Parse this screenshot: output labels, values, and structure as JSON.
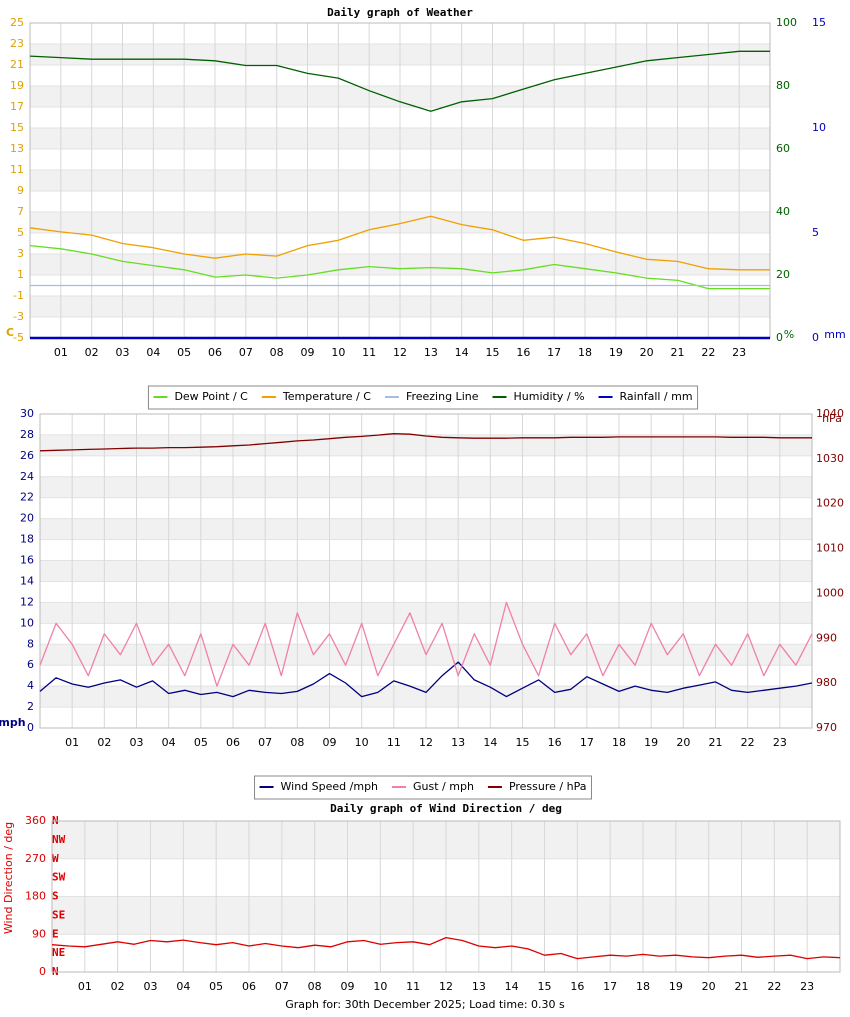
{
  "chart_data": [
    {
      "type": "line",
      "title": "Daily graph of Weather",
      "x": [
        0,
        1,
        2,
        3,
        4,
        5,
        6,
        7,
        8,
        9,
        10,
        11,
        12,
        13,
        14,
        15,
        16,
        17,
        18,
        19,
        20,
        21,
        22,
        23,
        24
      ],
      "xlim": [
        0,
        24
      ],
      "xticks": [
        {
          "value": 1,
          "label": "01"
        },
        {
          "value": 2,
          "label": "02"
        },
        {
          "value": 3,
          "label": "03"
        },
        {
          "value": 4,
          "label": "04"
        },
        {
          "value": 5,
          "label": "05"
        },
        {
          "value": 6,
          "label": "06"
        },
        {
          "value": 7,
          "label": "07"
        },
        {
          "value": 8,
          "label": "08"
        },
        {
          "value": 9,
          "label": "09"
        },
        {
          "value": 10,
          "label": "10"
        },
        {
          "value": 11,
          "label": "11"
        },
        {
          "value": 12,
          "label": "12"
        },
        {
          "value": 13,
          "label": "13"
        },
        {
          "value": 14,
          "label": "14"
        },
        {
          "value": 15,
          "label": "15"
        },
        {
          "value": 16,
          "label": "16"
        },
        {
          "value": 17,
          "label": "17"
        },
        {
          "value": 18,
          "label": "18"
        },
        {
          "value": 19,
          "label": "19"
        },
        {
          "value": 20,
          "label": "20"
        },
        {
          "value": 21,
          "label": "21"
        },
        {
          "value": 22,
          "label": "22"
        },
        {
          "value": 23,
          "label": "23"
        }
      ],
      "ylabel": "C",
      "ylim": [
        -5,
        25
      ],
      "yticks": [
        -5,
        -3,
        -1,
        1,
        3,
        5,
        7,
        9,
        11,
        13,
        15,
        17,
        19,
        21,
        23,
        25
      ],
      "ycolor": "#e0a000",
      "y2label": "%",
      "y2lim": [
        0,
        100
      ],
      "y2ticks": [
        0,
        20,
        40,
        60,
        80,
        100
      ],
      "y2color": "#006000",
      "y3label": "mm",
      "y3lim": [
        0,
        15
      ],
      "y3ticks": [
        0,
        5,
        10,
        15
      ],
      "y3color": "#0000c0",
      "grid": true,
      "series": [
        {
          "name": "Dew Point / C",
          "color": "#66dd22",
          "axis": "y",
          "values": [
            3.8,
            3.5,
            3.0,
            2.3,
            1.9,
            1.5,
            0.8,
            1.0,
            0.7,
            1.0,
            1.5,
            1.8,
            1.6,
            1.7,
            1.6,
            1.2,
            1.5,
            2.0,
            1.6,
            1.2,
            0.7,
            0.5,
            -0.3,
            -0.3,
            -0.3
          ]
        },
        {
          "name": "Temperature / C",
          "color": "#f0a000",
          "axis": "y",
          "values": [
            5.5,
            5.1,
            4.8,
            4.0,
            3.6,
            3.0,
            2.6,
            3.0,
            2.8,
            3.8,
            4.3,
            5.3,
            5.9,
            6.6,
            5.8,
            5.3,
            4.3,
            4.6,
            4.0,
            3.2,
            2.5,
            2.3,
            1.6,
            1.5,
            1.5
          ]
        },
        {
          "name": "Freezing Line",
          "color": "#a0c0e0",
          "axis": "y",
          "values": [
            0,
            0,
            0,
            0,
            0,
            0,
            0,
            0,
            0,
            0,
            0,
            0,
            0,
            0,
            0,
            0,
            0,
            0,
            0,
            0,
            0,
            0,
            0,
            0,
            0
          ]
        },
        {
          "name": "Humidity / %",
          "color": "#006000",
          "axis": "y2",
          "values": [
            89.5,
            89,
            88.5,
            88.5,
            88.5,
            88.5,
            88,
            86.5,
            86.5,
            84,
            82.5,
            78.5,
            75,
            72,
            75,
            76,
            79,
            82,
            84,
            86,
            88,
            89,
            90,
            91,
            91
          ]
        },
        {
          "name": "Rainfall / mm",
          "color": "#0000c0",
          "axis": "y3",
          "values": [
            0,
            0,
            0,
            0,
            0,
            0,
            0,
            0,
            0,
            0,
            0,
            0,
            0,
            0,
            0,
            0,
            0,
            0,
            0,
            0,
            0,
            0,
            0,
            0,
            0
          ]
        }
      ]
    },
    {
      "type": "line",
      "x": [
        0,
        0.5,
        1,
        1.5,
        2,
        2.5,
        3,
        3.5,
        4,
        4.5,
        5,
        5.5,
        6,
        6.5,
        7,
        7.5,
        8,
        8.5,
        9,
        9.5,
        10,
        10.5,
        11,
        11.5,
        12,
        12.5,
        13,
        13.5,
        14,
        14.5,
        15,
        15.5,
        16,
        16.5,
        17,
        17.5,
        18,
        18.5,
        19,
        19.5,
        20,
        20.5,
        21,
        21.5,
        22,
        22.5,
        23,
        23.5,
        24
      ],
      "xlim": [
        0,
        24
      ],
      "xticks": [
        {
          "value": 1,
          "label": "01"
        },
        {
          "value": 2,
          "label": "02"
        },
        {
          "value": 3,
          "label": "03"
        },
        {
          "value": 4,
          "label": "04"
        },
        {
          "value": 5,
          "label": "05"
        },
        {
          "value": 6,
          "label": "06"
        },
        {
          "value": 7,
          "label": "07"
        },
        {
          "value": 8,
          "label": "08"
        },
        {
          "value": 9,
          "label": "09"
        },
        {
          "value": 10,
          "label": "10"
        },
        {
          "value": 11,
          "label": "11"
        },
        {
          "value": 12,
          "label": "12"
        },
        {
          "value": 13,
          "label": "13"
        },
        {
          "value": 14,
          "label": "14"
        },
        {
          "value": 15,
          "label": "15"
        },
        {
          "value": 16,
          "label": "16"
        },
        {
          "value": 17,
          "label": "17"
        },
        {
          "value": 18,
          "label": "18"
        },
        {
          "value": 19,
          "label": "19"
        },
        {
          "value": 20,
          "label": "20"
        },
        {
          "value": 21,
          "label": "21"
        },
        {
          "value": 22,
          "label": "22"
        },
        {
          "value": 23,
          "label": "23"
        }
      ],
      "ylabel": "mph",
      "ylim": [
        0,
        30
      ],
      "yticks": [
        0,
        2,
        4,
        6,
        8,
        10,
        12,
        14,
        16,
        18,
        20,
        22,
        24,
        26,
        28,
        30
      ],
      "ycolor": "#000080",
      "y2label": "hPa",
      "y2lim": [
        970,
        1040
      ],
      "y2ticks": [
        970,
        980,
        990,
        1000,
        1010,
        1020,
        1030,
        1040
      ],
      "y2color": "#800000",
      "grid": true,
      "series": [
        {
          "name": "Wind Speed /mph",
          "color": "#000080",
          "axis": "y",
          "values": [
            3.5,
            4.8,
            4.2,
            3.9,
            4.3,
            4.6,
            3.9,
            4.5,
            3.3,
            3.6,
            3.2,
            3.4,
            3.0,
            3.6,
            3.4,
            3.3,
            3.5,
            4.2,
            5.2,
            4.3,
            3.0,
            3.4,
            4.5,
            4.0,
            3.4,
            5.0,
            6.3,
            4.6,
            3.9,
            3.0,
            3.8,
            4.6,
            3.4,
            3.7,
            4.9,
            4.2,
            3.5,
            4.0,
            3.6,
            3.4,
            3.8,
            4.1,
            4.4,
            3.6,
            3.4,
            3.6,
            3.8,
            4.0,
            4.3
          ]
        },
        {
          "name": "Gust / mph",
          "color": "#f080a8",
          "axis": "y",
          "values": [
            6,
            10,
            8,
            5,
            9,
            7,
            10,
            6,
            8,
            5,
            9,
            4,
            8,
            6,
            10,
            5,
            11,
            7,
            9,
            6,
            10,
            5,
            8,
            11,
            7,
            10,
            5,
            9,
            6,
            12,
            8,
            5,
            10,
            7,
            9,
            5,
            8,
            6,
            10,
            7,
            9,
            5,
            8,
            6,
            9,
            5,
            8,
            6,
            9
          ]
        },
        {
          "name": "Pressure / hPa",
          "color": "#800000",
          "axis": "y2",
          "values": [
            1031.8,
            1031.9,
            1032.0,
            1032.1,
            1032.2,
            1032.3,
            1032.4,
            1032.4,
            1032.5,
            1032.5,
            1032.6,
            1032.7,
            1032.9,
            1033.1,
            1033.4,
            1033.7,
            1034.0,
            1034.2,
            1034.5,
            1034.8,
            1035.0,
            1035.3,
            1035.6,
            1035.5,
            1035.1,
            1034.8,
            1034.7,
            1034.6,
            1034.6,
            1034.6,
            1034.7,
            1034.7,
            1034.7,
            1034.8,
            1034.8,
            1034.8,
            1034.9,
            1034.9,
            1034.9,
            1034.9,
            1034.9,
            1034.9,
            1034.9,
            1034.8,
            1034.8,
            1034.8,
            1034.7,
            1034.7,
            1034.7
          ]
        }
      ]
    },
    {
      "type": "line",
      "title": "Daily graph of Wind Direction / deg",
      "x": [
        0,
        0.5,
        1,
        1.5,
        2,
        2.5,
        3,
        3.5,
        4,
        4.5,
        5,
        5.5,
        6,
        6.5,
        7,
        7.5,
        8,
        8.5,
        9,
        9.5,
        10,
        10.5,
        11,
        11.5,
        12,
        12.5,
        13,
        13.5,
        14,
        14.5,
        15,
        15.5,
        16,
        16.5,
        17,
        17.5,
        18,
        18.5,
        19,
        19.5,
        20,
        20.5,
        21,
        21.5,
        22,
        22.5,
        23,
        23.5,
        24
      ],
      "xlim": [
        0,
        24
      ],
      "xticks": [
        {
          "value": 1,
          "label": "01"
        },
        {
          "value": 2,
          "label": "02"
        },
        {
          "value": 3,
          "label": "03"
        },
        {
          "value": 4,
          "label": "04"
        },
        {
          "value": 5,
          "label": "05"
        },
        {
          "value": 6,
          "label": "06"
        },
        {
          "value": 7,
          "label": "07"
        },
        {
          "value": 8,
          "label": "08"
        },
        {
          "value": 9,
          "label": "09"
        },
        {
          "value": 10,
          "label": "10"
        },
        {
          "value": 11,
          "label": "11"
        },
        {
          "value": 12,
          "label": "12"
        },
        {
          "value": 13,
          "label": "13"
        },
        {
          "value": 14,
          "label": "14"
        },
        {
          "value": 15,
          "label": "15"
        },
        {
          "value": 16,
          "label": "16"
        },
        {
          "value": 17,
          "label": "17"
        },
        {
          "value": 18,
          "label": "18"
        },
        {
          "value": 19,
          "label": "19"
        },
        {
          "value": 20,
          "label": "20"
        },
        {
          "value": 21,
          "label": "21"
        },
        {
          "value": 22,
          "label": "22"
        },
        {
          "value": 23,
          "label": "23"
        }
      ],
      "ylabel": "Wind Direction / deg",
      "ylim": [
        0,
        360
      ],
      "yticks": [
        0,
        90,
        180,
        270,
        360
      ],
      "ycolor": "#dd0000",
      "y2lim": [
        0,
        360
      ],
      "y2ticks": [
        {
          "value": 0,
          "label": "N"
        },
        {
          "value": 45,
          "label": "NE"
        },
        {
          "value": 90,
          "label": "E"
        },
        {
          "value": 135,
          "label": "SE"
        },
        {
          "value": 180,
          "label": "S"
        },
        {
          "value": 225,
          "label": "SW"
        },
        {
          "value": 270,
          "label": "W"
        },
        {
          "value": 315,
          "label": "NW"
        },
        {
          "value": 360,
          "label": "N"
        }
      ],
      "y2color": "#dd0000",
      "grid": true,
      "series": [
        {
          "color": "#dd0000",
          "axis": "y",
          "values": [
            65,
            62,
            60,
            66,
            72,
            66,
            75,
            72,
            76,
            70,
            65,
            70,
            62,
            68,
            62,
            58,
            64,
            60,
            72,
            75,
            66,
            70,
            72,
            65,
            82,
            75,
            62,
            58,
            62,
            55,
            40,
            44,
            32,
            36,
            40,
            38,
            42,
            38,
            40,
            36,
            34,
            38,
            40,
            35,
            38,
            40,
            32,
            36,
            34
          ]
        }
      ]
    }
  ],
  "footer": "Graph for: 30th December 2025; Load time: 0.30 s"
}
